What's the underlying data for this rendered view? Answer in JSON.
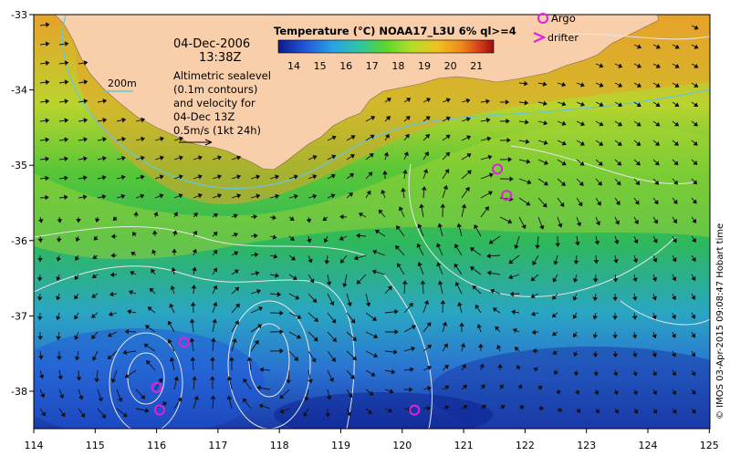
{
  "map": {
    "date": "04-Dec-2006",
    "time": "13:38Z",
    "title": "Temperature (°C) NOAA17_L3U 6% ql>=4",
    "colorbar_ticks": [
      "14",
      "15",
      "16",
      "17",
      "18",
      "19",
      "20",
      "21"
    ],
    "colorbar_colors": [
      "#0a1a8c",
      "#1f55d8",
      "#2aa0e6",
      "#30c6a0",
      "#5cd62c",
      "#b5dc2a",
      "#f0c020",
      "#f08a1c",
      "#d8401a",
      "#9a1010"
    ],
    "contour_label": "200m",
    "altimetry_text": [
      "Altimetric sealevel",
      "(0.1m contours)",
      "and velocity for",
      "04-Dec 13Z",
      "0.5m/s (1kt 24h)"
    ],
    "legend": {
      "argo": "Argo",
      "drifter": "drifter"
    },
    "x_ticks": [
      "114",
      "115",
      "116",
      "117",
      "118",
      "119",
      "120",
      "121",
      "122",
      "123",
      "124",
      "125"
    ],
    "y_ticks": [
      "-33",
      "-34",
      "-35",
      "-36",
      "-37",
      "-38"
    ],
    "credit": "© IMOS 03-Apr-2015 09:08:47 Hobart time",
    "argo_floats": [
      {
        "lon": 121.55,
        "lat": -35.05
      },
      {
        "lon": 121.7,
        "lat": -35.4
      },
      {
        "lon": 116.45,
        "lat": -37.35
      },
      {
        "lon": 116.0,
        "lat": -37.95
      },
      {
        "lon": 116.05,
        "lat": -38.25
      },
      {
        "lon": 120.2,
        "lat": -38.25
      }
    ],
    "colors": {
      "land": "#f8cfaa",
      "contour": "#66c8d8",
      "argo": "#e020e0",
      "ssh_contour": "#e8e8e8"
    }
  }
}
